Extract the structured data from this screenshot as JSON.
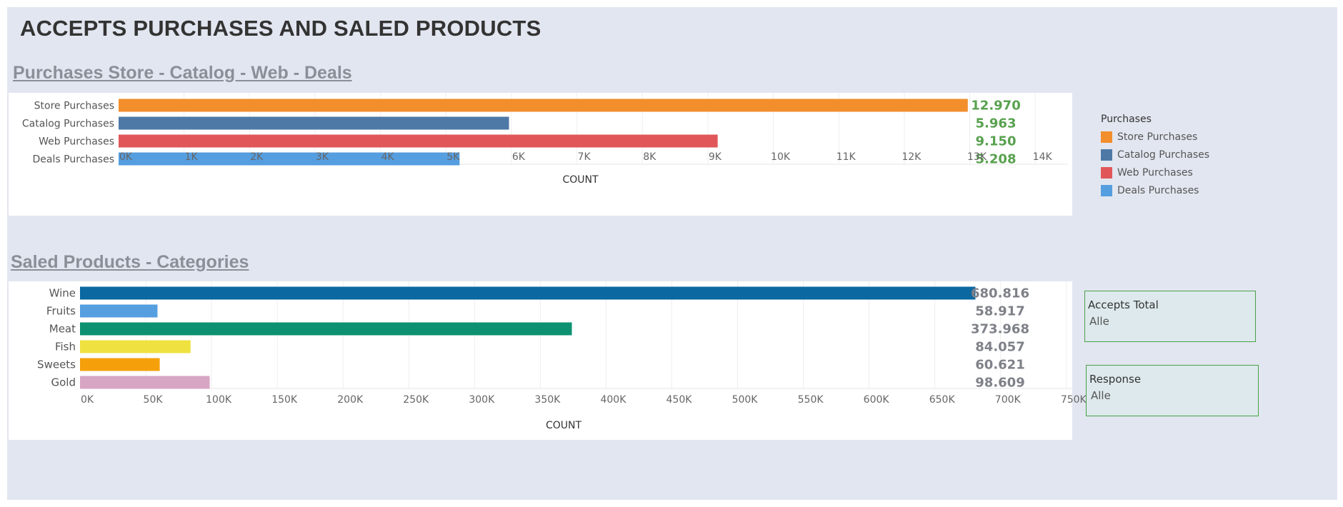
{
  "dashboard": {
    "title": "ACCEPTS PURCHASES AND SALED PRODUCTS",
    "background": "#e2e6f0"
  },
  "legend": {
    "title": "Purchases",
    "items": [
      {
        "label": "Store Purchases",
        "color": "#f28e2b"
      },
      {
        "label": "Catalog Purchases",
        "color": "#4e79a7"
      },
      {
        "label": "Web Purchases",
        "color": "#e15759"
      },
      {
        "label": "Deals Purchases",
        "color": "#559ee0"
      }
    ]
  },
  "filters": [
    {
      "title": "Accepts Total",
      "value": "Alle"
    },
    {
      "title": "Response",
      "value": "Alle"
    }
  ],
  "chart_data": [
    {
      "type": "bar",
      "orientation": "horizontal",
      "title": "Purchases Store - Catalog - Web - Deals",
      "xlabel": "COUNT",
      "categories": [
        "Store Purchases",
        "Catalog Purchases",
        "Web Purchases",
        "Deals Purchases"
      ],
      "values": [
        12970,
        5963,
        9150,
        5208
      ],
      "value_labels": [
        "12.970",
        "5.963",
        "9.150",
        "5.208"
      ],
      "colors": [
        "#f28e2b",
        "#4e79a7",
        "#e15759",
        "#559ee0"
      ],
      "label_color": "#59a14f",
      "xlim": [
        0,
        14500
      ],
      "ticks": [
        0,
        1000,
        2000,
        3000,
        4000,
        5000,
        6000,
        7000,
        8000,
        9000,
        10000,
        11000,
        12000,
        13000,
        14000
      ],
      "tick_labels": [
        "0K",
        "1K",
        "2K",
        "3K",
        "4K",
        "5K",
        "6K",
        "7K",
        "8K",
        "9K",
        "10K",
        "11K",
        "12K",
        "13K",
        "14K"
      ],
      "grid": true,
      "legend": "right"
    },
    {
      "type": "bar",
      "orientation": "horizontal",
      "title": "Saled Products - Categories",
      "xlabel": "COUNT",
      "categories": [
        "Wine",
        "Fruits",
        "Meat",
        "Fish",
        "Sweets",
        "Gold"
      ],
      "values": [
        680816,
        58917,
        373968,
        84057,
        60621,
        98609
      ],
      "value_labels": [
        "680.816",
        "58.917",
        "373.968",
        "84.057",
        "60.621",
        "98.609"
      ],
      "colors": [
        "#0b68a1",
        "#559ee0",
        "#0d9170",
        "#efe140",
        "#f5a00a",
        "#d7a6c4"
      ],
      "label_color": "#7f8189",
      "xlim": [
        0,
        755000
      ],
      "ticks": [
        0,
        50000,
        100000,
        150000,
        200000,
        250000,
        300000,
        350000,
        400000,
        450000,
        500000,
        550000,
        600000,
        650000,
        700000,
        750000
      ],
      "tick_labels": [
        "0K",
        "50K",
        "100K",
        "150K",
        "200K",
        "250K",
        "300K",
        "350K",
        "400K",
        "450K",
        "500K",
        "550K",
        "600K",
        "650K",
        "700K",
        "750K"
      ],
      "grid": true
    }
  ]
}
